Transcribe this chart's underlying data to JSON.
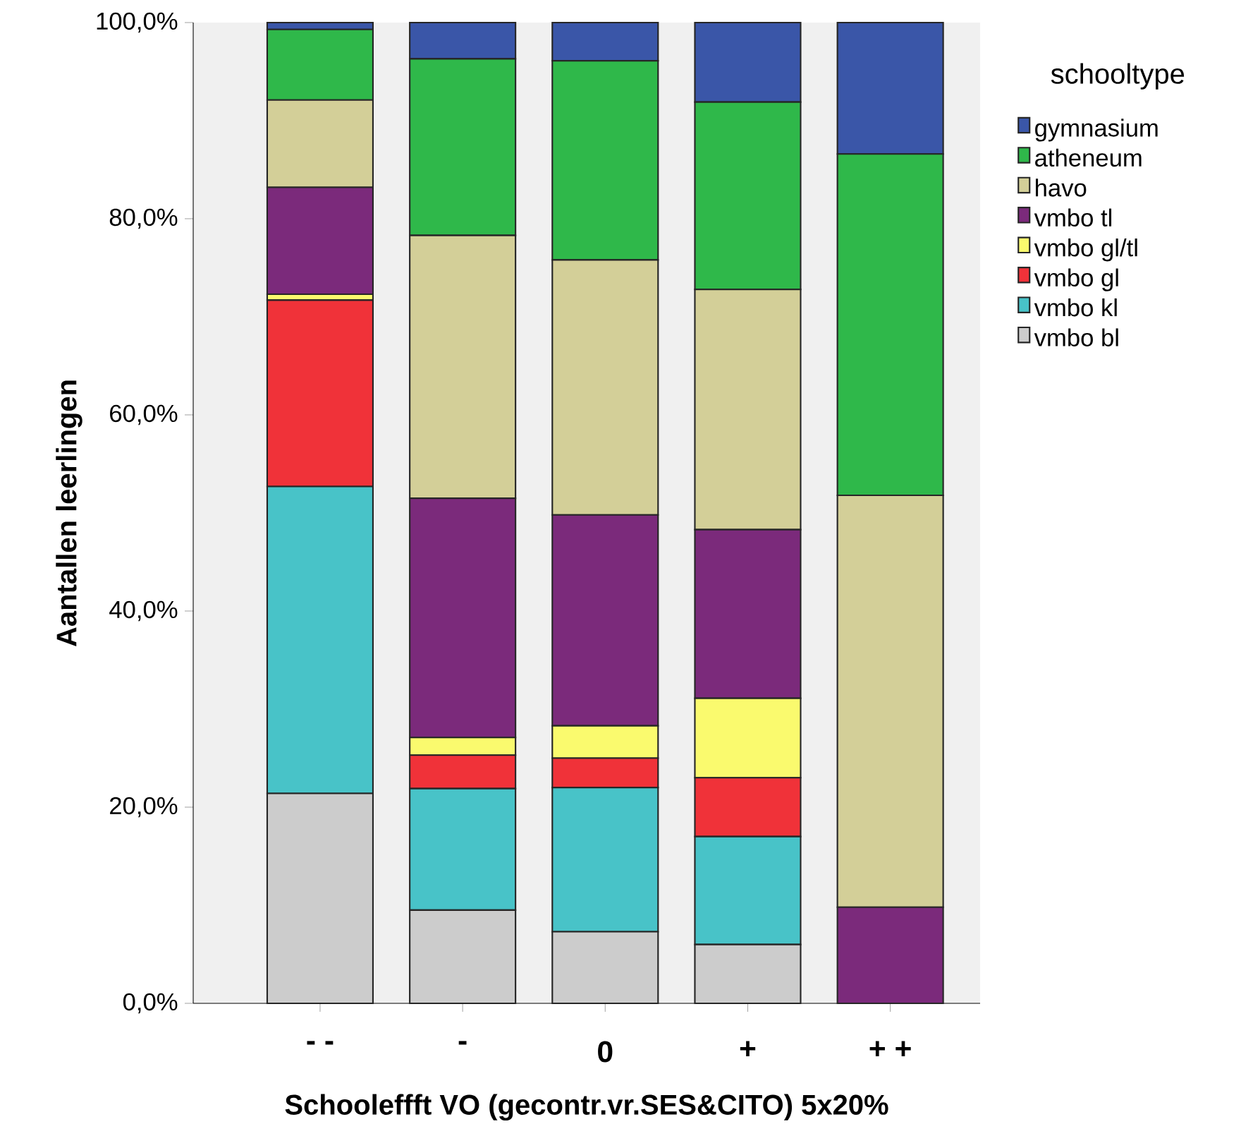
{
  "chart_data": {
    "type": "bar",
    "stacked": true,
    "xlabel": "Schooleffft VO (gecontr.vr.SES&CITO) 5x20%",
    "ylabel": "Aantallen leerlingen",
    "legend_title": "schooltype",
    "legend": "right",
    "categories": [
      "- -",
      "-",
      "0",
      "+",
      "+ +"
    ],
    "ylim": [
      0,
      100
    ],
    "yticks": [
      {
        "value": 0,
        "label": "0,0%"
      },
      {
        "value": 20,
        "label": "20,0%"
      },
      {
        "value": 40,
        "label": "40,0%"
      },
      {
        "value": 60,
        "label": "60,0%"
      },
      {
        "value": 80,
        "label": "80,0%"
      },
      {
        "value": 100,
        "label": "100,0%"
      }
    ],
    "series": [
      {
        "name": "vmbo bl",
        "color": "#cccccc",
        "values": [
          21.4,
          9.5,
          7.3,
          6.0,
          0
        ]
      },
      {
        "name": "vmbo kl",
        "color": "#48c3c8",
        "values": [
          31.3,
          12.4,
          14.7,
          11.0,
          0
        ]
      },
      {
        "name": "vmbo gl",
        "color": "#f03239",
        "values": [
          19.0,
          3.4,
          3.0,
          6.0,
          0
        ]
      },
      {
        "name": "vmbo gl/tl",
        "color": "#fafa6e",
        "values": [
          0.6,
          1.8,
          3.3,
          8.1,
          0
        ]
      },
      {
        "name": "vmbo tl",
        "color": "#7b2a7b",
        "values": [
          10.9,
          24.4,
          21.5,
          17.2,
          9.8
        ]
      },
      {
        "name": "havo",
        "color": "#d3cf98",
        "values": [
          8.9,
          26.8,
          26.0,
          24.5,
          42.0
        ]
      },
      {
        "name": "atheneum",
        "color": "#2fb84a",
        "values": [
          7.2,
          18.0,
          20.3,
          19.1,
          34.8
        ]
      },
      {
        "name": "gymnasium",
        "color": "#3a56a8",
        "values": [
          0.7,
          3.7,
          3.9,
          8.1,
          13.4
        ]
      }
    ]
  }
}
